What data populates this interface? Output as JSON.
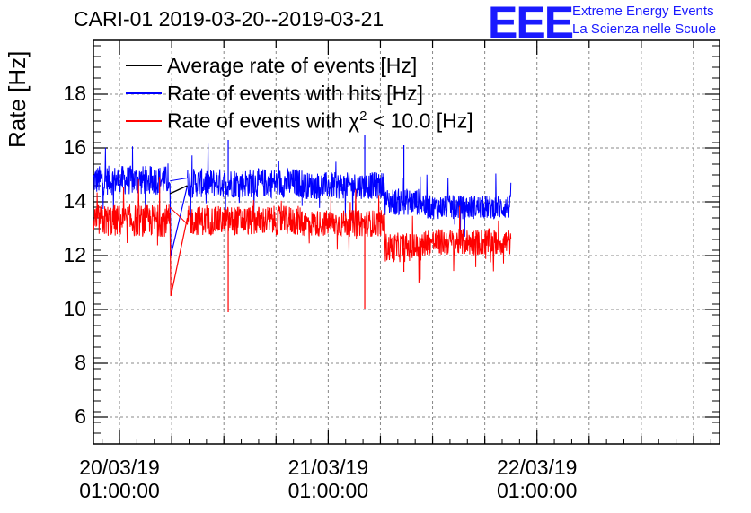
{
  "chart_data": {
    "type": "line",
    "title": "CARI-01 2019-03-20--2019-03-21",
    "ylabel": "Rate [Hz]",
    "xlabel": "",
    "ylim": [
      5,
      20
    ],
    "yticks": [
      6,
      8,
      10,
      12,
      14,
      16,
      18
    ],
    "x_range_hours": [
      -3,
      69
    ],
    "xticks": [
      {
        "hour": 0,
        "line1": "20/03/19",
        "line2": "01:00:00"
      },
      {
        "hour": 24,
        "line1": "21/03/19",
        "line2": "01:00:00"
      },
      {
        "hour": 48,
        "line1": "22/03/19",
        "line2": "01:00:00"
      }
    ],
    "grid": true,
    "legend": {
      "position": "top-left",
      "entries": [
        {
          "label": "Average rate of events [Hz]",
          "color": "#000000"
        },
        {
          "label": "Rate of events with hits [Hz]",
          "color": "#0000ff"
        },
        {
          "label_pre": "Rate of events with ",
          "label_sym": "χ",
          "label_sup": "2",
          "label_post": " < 10.0 [Hz]",
          "color": "#ff0000"
        }
      ]
    },
    "series": [
      {
        "name": "Rate of events with hits [Hz]",
        "color": "#0000ff",
        "segments": [
          {
            "x_start": -3.0,
            "x_end": 5.8,
            "mean": 14.8,
            "noise": 0.55
          },
          {
            "x_start": 5.8,
            "x_end": 7.8,
            "connector_to": 14.6
          },
          {
            "x_start": 7.8,
            "x_end": 21.0,
            "mean": 14.7,
            "noise": 0.55
          },
          {
            "x_start": 21.0,
            "x_end": 30.5,
            "mean": 14.6,
            "noise": 0.5
          },
          {
            "x_start": 30.5,
            "x_end": 35.0,
            "mean": 14.0,
            "noise": 0.5
          },
          {
            "x_start": 35.0,
            "x_end": 45.0,
            "mean": 13.8,
            "noise": 0.45
          }
        ],
        "endpoints": {
          "first_drop": 12.0,
          "spikes": [
            16.3,
            16.5,
            16.1
          ]
        }
      },
      {
        "name": "Rate of events with χ2 < 10.0 [Hz]",
        "color": "#ff0000",
        "segments": [
          {
            "x_start": -3.0,
            "x_end": 5.8,
            "mean": 13.3,
            "noise": 0.6
          },
          {
            "x_start": 5.8,
            "x_end": 7.8,
            "connector_to": 13.4
          },
          {
            "x_start": 7.8,
            "x_end": 21.0,
            "mean": 13.3,
            "noise": 0.55
          },
          {
            "x_start": 21.0,
            "x_end": 30.5,
            "mean": 13.2,
            "noise": 0.5
          },
          {
            "x_start": 30.5,
            "x_end": 35.0,
            "mean": 12.3,
            "noise": 0.55
          },
          {
            "x_start": 35.0,
            "x_end": 45.0,
            "mean": 12.5,
            "noise": 0.5
          }
        ],
        "endpoints": {
          "first_drop": 10.5,
          "dips": [
            9.9,
            10.0,
            11.4
          ]
        }
      },
      {
        "name": "Average rate of events [Hz]",
        "color": "#000000",
        "points": [
          [
            5.8,
            14.3
          ],
          [
            7.8,
            14.6
          ]
        ]
      }
    ]
  },
  "header": {
    "logo_text": "EEE",
    "logo_line1": "Extreme Energy Events",
    "logo_line2": "La Scienza nelle Scuole",
    "logo_color": "#1a1aff"
  }
}
